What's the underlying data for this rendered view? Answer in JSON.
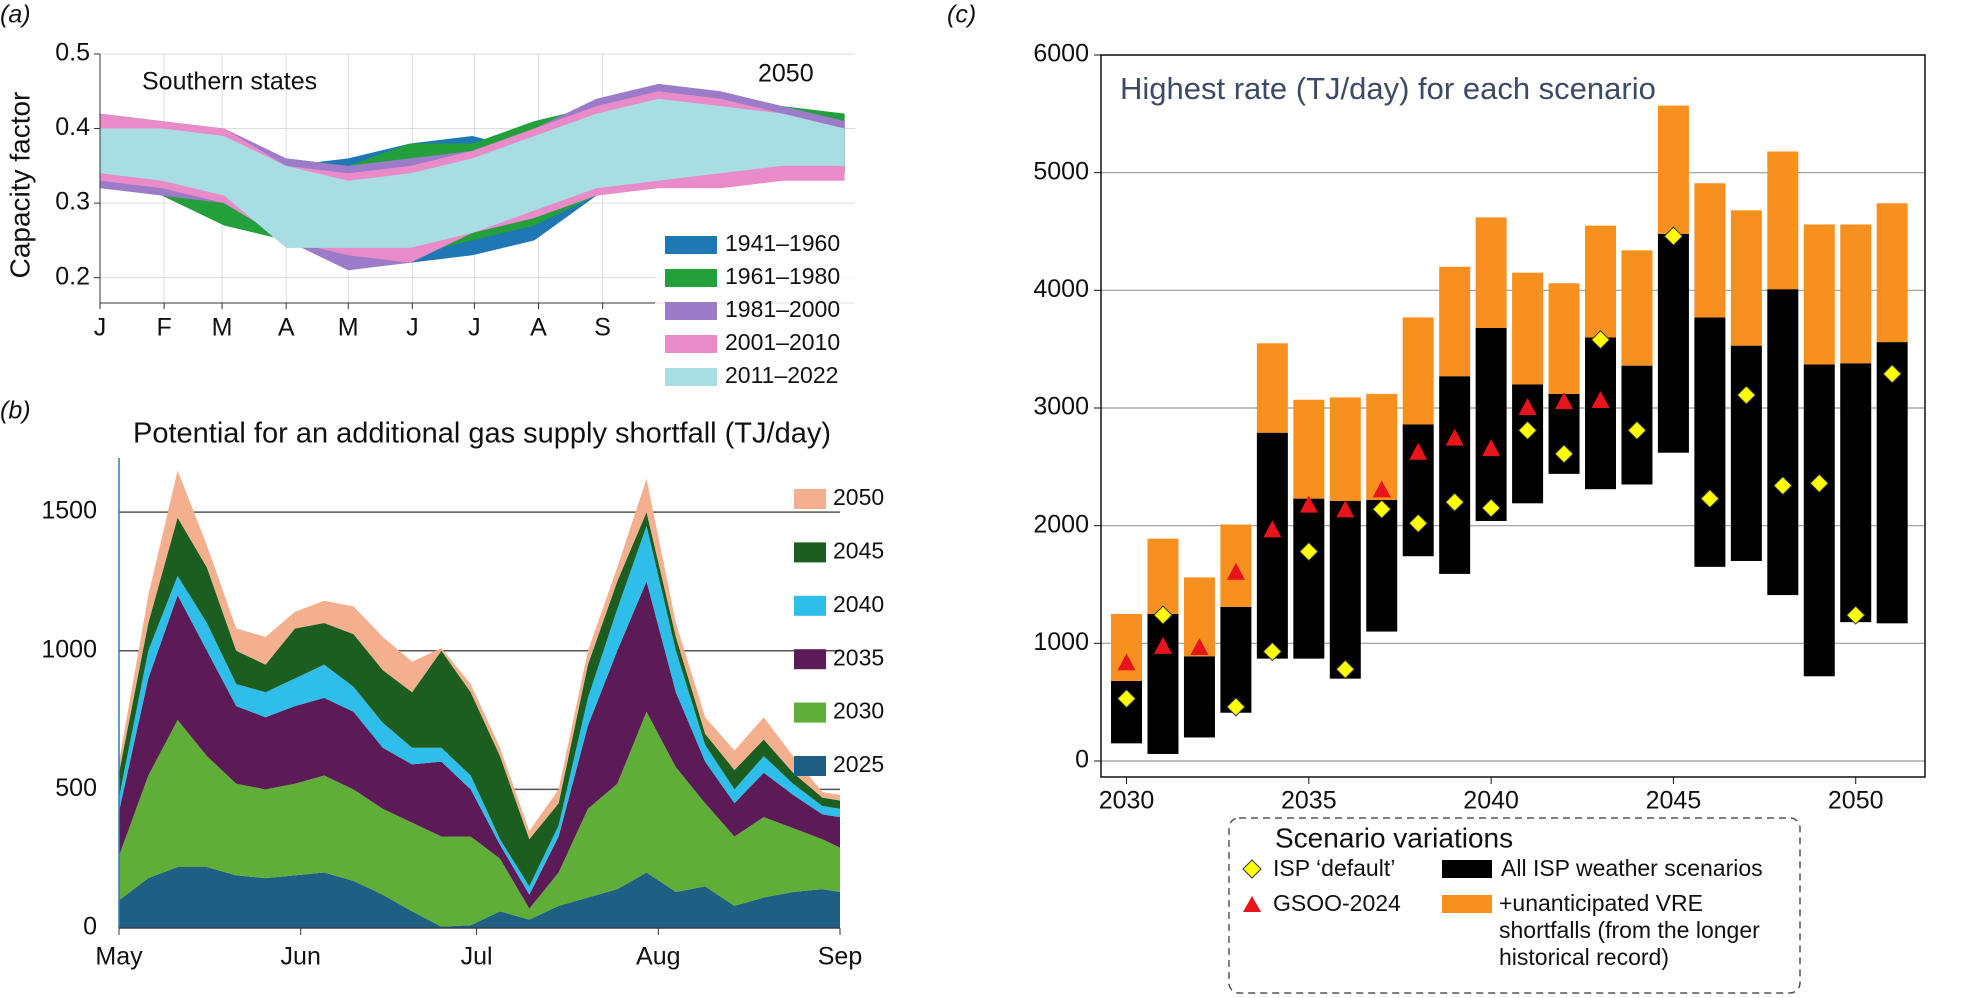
{
  "chart_data": [
    {
      "panel": "(a)",
      "type": "range",
      "annotations": [
        "Southern states",
        "2050"
      ],
      "ylabel": "Capacity factor",
      "x": [
        0,
        30,
        60,
        90,
        120,
        150,
        180,
        210,
        240,
        270,
        300,
        330,
        360
      ],
      "xticks": [
        {
          "value": 0,
          "label": "J"
        },
        {
          "value": 31,
          "label": "F"
        },
        {
          "value": 59,
          "label": "M"
        },
        {
          "value": 90,
          "label": "A"
        },
        {
          "value": 120,
          "label": "M"
        },
        {
          "value": 151,
          "label": "J"
        },
        {
          "value": 181,
          "label": "J"
        },
        {
          "value": 212,
          "label": "A"
        },
        {
          "value": 243,
          "label": "S"
        }
      ],
      "xlim": [
        0,
        365
      ],
      "ylim": [
        0.166,
        0.5
      ],
      "yticks": [
        0.2,
        0.3,
        0.4,
        0.5
      ],
      "grid": true,
      "series": [
        {
          "name": "1941–1960",
          "color": "#1f78b4",
          "low": [
            0.33,
            0.32,
            0.31,
            0.26,
            0.24,
            0.22,
            0.23,
            0.25,
            0.31,
            0.33,
            0.34,
            0.34,
            0.34
          ],
          "high": [
            0.4,
            0.4,
            0.39,
            0.35,
            0.36,
            0.38,
            0.39,
            0.37,
            0.42,
            0.43,
            0.43,
            0.42,
            0.41
          ]
        },
        {
          "name": "1961–1980",
          "color": "#23a03c",
          "low": [
            0.33,
            0.31,
            0.27,
            0.25,
            0.24,
            0.23,
            0.25,
            0.27,
            0.31,
            0.33,
            0.33,
            0.34,
            0.34
          ],
          "high": [
            0.41,
            0.4,
            0.38,
            0.36,
            0.35,
            0.38,
            0.38,
            0.41,
            0.43,
            0.44,
            0.44,
            0.43,
            0.42
          ]
        },
        {
          "name": "1981–2000",
          "color": "#9c7bc9",
          "low": [
            0.32,
            0.31,
            0.3,
            0.25,
            0.21,
            0.22,
            0.26,
            0.28,
            0.32,
            0.33,
            0.33,
            0.34,
            0.34
          ],
          "high": [
            0.42,
            0.41,
            0.4,
            0.36,
            0.35,
            0.36,
            0.37,
            0.4,
            0.44,
            0.46,
            0.45,
            0.43,
            0.41
          ]
        },
        {
          "name": "2001–2010",
          "color": "#e98ac9",
          "low": [
            0.33,
            0.32,
            0.3,
            0.25,
            0.23,
            0.22,
            0.26,
            0.28,
            0.31,
            0.32,
            0.32,
            0.33,
            0.33
          ],
          "high": [
            0.42,
            0.41,
            0.4,
            0.35,
            0.34,
            0.35,
            0.37,
            0.4,
            0.43,
            0.45,
            0.44,
            0.42,
            0.4
          ]
        },
        {
          "name": "2011–2022",
          "color": "#a7dde3",
          "low": [
            0.34,
            0.33,
            0.31,
            0.24,
            0.24,
            0.24,
            0.26,
            0.29,
            0.32,
            0.33,
            0.34,
            0.35,
            0.35
          ],
          "high": [
            0.4,
            0.4,
            0.39,
            0.35,
            0.33,
            0.34,
            0.36,
            0.39,
            0.42,
            0.44,
            0.43,
            0.42,
            0.4
          ]
        }
      ]
    },
    {
      "panel": "(b)",
      "type": "area",
      "stacked": true,
      "title": "Potential for an additional gas supply shortfall (TJ/day)",
      "x": [
        0,
        5,
        10,
        15,
        20,
        25,
        30,
        35,
        40,
        45,
        50,
        55,
        60,
        65,
        70,
        75,
        80,
        85,
        90,
        95,
        100,
        105,
        110,
        115,
        120,
        123
      ],
      "xticks": [
        {
          "value": 0,
          "label": "May"
        },
        {
          "value": 31,
          "label": "Jun"
        },
        {
          "value": 61,
          "label": "Jul"
        },
        {
          "value": 92,
          "label": "Aug"
        },
        {
          "value": 123,
          "label": "Sep"
        }
      ],
      "xlim": [
        0,
        123
      ],
      "ylim": [
        0,
        1695
      ],
      "yticks": [
        0,
        500,
        1000,
        1500
      ],
      "grid": true,
      "series": [
        {
          "name": "2025",
          "color": "#1f5f84",
          "values": [
            100,
            180,
            220,
            220,
            190,
            180,
            190,
            200,
            170,
            120,
            60,
            5,
            10,
            60,
            30,
            80,
            110,
            140,
            200,
            130,
            150,
            80,
            110,
            130,
            140,
            130
          ]
        },
        {
          "name": "2030",
          "color": "#5fae37",
          "values": [
            160,
            370,
            530,
            400,
            330,
            320,
            330,
            350,
            330,
            310,
            320,
            325,
            320,
            190,
            40,
            120,
            320,
            380,
            580,
            450,
            300,
            250,
            290,
            230,
            180,
            160
          ]
        },
        {
          "name": "2035",
          "color": "#5c1a56",
          "values": [
            160,
            350,
            450,
            380,
            280,
            260,
            280,
            280,
            280,
            220,
            210,
            270,
            170,
            50,
            50,
            130,
            300,
            480,
            470,
            270,
            150,
            120,
            160,
            120,
            90,
            110
          ]
        },
        {
          "name": "2040",
          "color": "#2fbde9",
          "values": [
            50,
            100,
            70,
            100,
            80,
            90,
            100,
            120,
            90,
            90,
            60,
            50,
            50,
            20,
            30,
            40,
            100,
            150,
            200,
            150,
            60,
            50,
            60,
            40,
            30,
            30
          ]
        },
        {
          "name": "2045",
          "color": "#1b5e20",
          "values": [
            90,
            100,
            210,
            200,
            120,
            100,
            180,
            150,
            190,
            190,
            200,
            350,
            300,
            300,
            170,
            80,
            120,
            100,
            50,
            50,
            40,
            70,
            60,
            40,
            30,
            30
          ]
        },
        {
          "name": "2050",
          "color": "#f4b08e",
          "values": [
            40,
            100,
            170,
            80,
            80,
            100,
            60,
            80,
            100,
            120,
            110,
            10,
            30,
            30,
            30,
            50,
            50,
            50,
            120,
            50,
            60,
            70,
            80,
            60,
            20,
            20
          ]
        }
      ]
    },
    {
      "panel": "(c)",
      "type": "bar",
      "title": "Highest rate (TJ/day) for each scenario",
      "legend_title": "Scenario variations",
      "x": [
        2030,
        2031,
        2032,
        2033,
        2034,
        2035,
        2036,
        2037,
        2038,
        2039,
        2040,
        2041,
        2042,
        2043,
        2044,
        2045,
        2046,
        2047,
        2048,
        2049,
        2050,
        2051
      ],
      "xlim": [
        2029.3,
        2051.9
      ],
      "ylim": [
        -136,
        6000
      ],
      "yticks": [
        0,
        1000,
        2000,
        3000,
        4000,
        5000,
        6000
      ],
      "xticks": [
        2030,
        2035,
        2040,
        2045,
        2050
      ],
      "grid": true,
      "series": [
        {
          "name": "All ISP weather scenarios",
          "color": "#000000",
          "low": [
            150,
            60,
            200,
            410,
            870,
            870,
            700,
            1100,
            1740,
            1590,
            2040,
            2190,
            2440,
            2310,
            2350,
            2620,
            1650,
            1700,
            1410,
            720,
            1180,
            1170
          ],
          "high": [
            680,
            1250,
            890,
            1310,
            2790,
            2230,
            2210,
            2220,
            2860,
            3270,
            3680,
            3200,
            3120,
            3600,
            3360,
            4480,
            3770,
            3530,
            4010,
            3370,
            3380,
            3560
          ]
        },
        {
          "name": "+unanticipated VRE shortfalls (from the longer historical record)",
          "color": "#f7901e",
          "values": [
            570,
            640,
            670,
            700,
            760,
            840,
            880,
            900,
            910,
            930,
            940,
            950,
            940,
            950,
            980,
            1090,
            1140,
            1150,
            1170,
            1190,
            1180,
            1180
          ]
        },
        {
          "name": "ISP ‘default’",
          "color": "#ffff00",
          "marker": "diamond",
          "values": [
            530,
            1240,
            null,
            460,
            930,
            1780,
            780,
            2140,
            2020,
            2200,
            2150,
            2810,
            2610,
            3580,
            2810,
            4460,
            2230,
            3110,
            2340,
            2360,
            1240,
            3290
          ]
        },
        {
          "name": "GSOO-2024",
          "color": "#e8141b",
          "marker": "triangle",
          "values": [
            830,
            970,
            960,
            1600,
            1960,
            2170,
            2130,
            2300,
            2620,
            2740,
            2650,
            3000,
            3050,
            3060,
            null,
            null,
            null,
            null,
            null,
            null,
            null,
            null
          ]
        }
      ]
    }
  ]
}
